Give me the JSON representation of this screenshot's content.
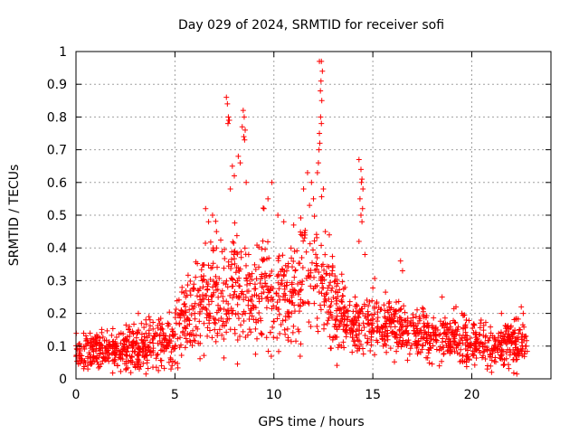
{
  "chart_data": {
    "type": "scatter",
    "title": "Day 029 of 2024, SRMTID for receiver sofi",
    "xlabel": "GPS time / hours",
    "ylabel": "SRMTID / TECUs",
    "xlim": [
      0,
      24
    ],
    "ylim": [
      0,
      1
    ],
    "x_ticks": [
      0,
      5,
      10,
      15,
      20
    ],
    "y_ticks": [
      0,
      0.1,
      0.2,
      0.3,
      0.4,
      0.5,
      0.6,
      0.7,
      0.8,
      0.9,
      1
    ],
    "x_tick_labels": [
      "0",
      "5",
      "10",
      "15",
      "20"
    ],
    "y_tick_labels": [
      "0",
      "0.1",
      "0.2",
      "0.3",
      "0.4",
      "0.5",
      "0.6",
      "0.7",
      "0.8",
      "0.9",
      "1"
    ],
    "grid": true,
    "legend": "none",
    "marker": "+",
    "color": "#ff0000",
    "series": [
      {
        "name": "SRMTID",
        "envelope": {
          "x": [
            0,
            1,
            2,
            3,
            4,
            4.5,
            5,
            5.5,
            6,
            6.5,
            7,
            7.5,
            8,
            8.5,
            9,
            9.5,
            10,
            10.5,
            11,
            11.5,
            12,
            12.5,
            13,
            13.5,
            14,
            14.5,
            15,
            15.5,
            16,
            16.5,
            17,
            18,
            19,
            20,
            21,
            22,
            22.8
          ],
          "mean": [
            0.08,
            0.09,
            0.09,
            0.09,
            0.1,
            0.09,
            0.13,
            0.18,
            0.22,
            0.26,
            0.28,
            0.25,
            0.28,
            0.3,
            0.24,
            0.28,
            0.25,
            0.26,
            0.28,
            0.3,
            0.32,
            0.3,
            0.24,
            0.18,
            0.15,
            0.17,
            0.18,
            0.17,
            0.16,
            0.15,
            0.15,
            0.13,
            0.12,
            0.11,
            0.1,
            0.1,
            0.1
          ],
          "spread": [
            0.03,
            0.03,
            0.03,
            0.04,
            0.05,
            0.05,
            0.05,
            0.06,
            0.08,
            0.1,
            0.1,
            0.09,
            0.1,
            0.1,
            0.09,
            0.1,
            0.1,
            0.09,
            0.1,
            0.11,
            0.11,
            0.1,
            0.08,
            0.06,
            0.05,
            0.06,
            0.06,
            0.05,
            0.05,
            0.05,
            0.05,
            0.04,
            0.04,
            0.04,
            0.04,
            0.04,
            0.04
          ]
        },
        "points": [
          [
            7.6,
            0.86
          ],
          [
            7.65,
            0.84
          ],
          [
            7.7,
            0.8
          ],
          [
            7.72,
            0.79
          ],
          [
            7.68,
            0.78
          ],
          [
            7.75,
            0.79
          ],
          [
            8.45,
            0.82
          ],
          [
            8.5,
            0.8
          ],
          [
            8.4,
            0.77
          ],
          [
            8.55,
            0.76
          ],
          [
            8.48,
            0.74
          ],
          [
            8.52,
            0.73
          ],
          [
            7.9,
            0.65
          ],
          [
            8.0,
            0.62
          ],
          [
            8.2,
            0.68
          ],
          [
            8.3,
            0.66
          ],
          [
            7.8,
            0.58
          ],
          [
            8.6,
            0.6
          ],
          [
            6.55,
            0.52
          ],
          [
            6.7,
            0.48
          ],
          [
            6.9,
            0.5
          ],
          [
            7.1,
            0.45
          ],
          [
            9.9,
            0.6
          ],
          [
            9.7,
            0.55
          ],
          [
            9.5,
            0.52
          ],
          [
            10.2,
            0.5
          ],
          [
            10.5,
            0.48
          ],
          [
            11.0,
            0.47
          ],
          [
            11.5,
            0.58
          ],
          [
            11.7,
            0.63
          ],
          [
            11.9,
            0.6
          ],
          [
            12.0,
            0.55
          ],
          [
            11.8,
            0.53
          ],
          [
            12.3,
            0.97
          ],
          [
            12.4,
            0.97
          ],
          [
            12.45,
            0.94
          ],
          [
            12.38,
            0.91
          ],
          [
            12.35,
            0.88
          ],
          [
            12.42,
            0.85
          ],
          [
            12.36,
            0.8
          ],
          [
            12.4,
            0.78
          ],
          [
            12.3,
            0.75
          ],
          [
            12.32,
            0.72
          ],
          [
            12.28,
            0.7
          ],
          [
            12.25,
            0.66
          ],
          [
            12.2,
            0.63
          ],
          [
            12.6,
            0.45
          ],
          [
            12.8,
            0.44
          ],
          [
            12.5,
            0.58
          ],
          [
            14.3,
            0.67
          ],
          [
            14.4,
            0.64
          ],
          [
            14.45,
            0.61
          ],
          [
            14.42,
            0.6
          ],
          [
            14.5,
            0.58
          ],
          [
            14.35,
            0.55
          ],
          [
            14.48,
            0.52
          ],
          [
            14.4,
            0.5
          ],
          [
            14.45,
            0.48
          ],
          [
            14.3,
            0.42
          ],
          [
            14.6,
            0.38
          ],
          [
            16.4,
            0.36
          ],
          [
            16.5,
            0.33
          ],
          [
            19.5,
            0.2
          ],
          [
            19.2,
            0.22
          ],
          [
            18.5,
            0.25
          ],
          [
            21.5,
            0.2
          ],
          [
            22.5,
            0.22
          ],
          [
            22.6,
            0.2
          ],
          [
            5.0,
            0.05
          ],
          [
            4.8,
            0.03
          ],
          [
            3.2,
            0.03
          ],
          [
            2.1,
            0.04
          ],
          [
            0.6,
            0.03
          ],
          [
            21.0,
            0.02
          ],
          [
            20.8,
            0.04
          ]
        ]
      }
    ]
  }
}
